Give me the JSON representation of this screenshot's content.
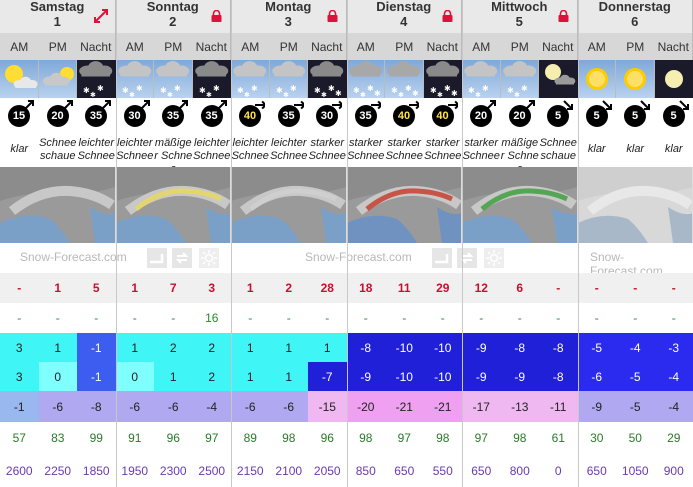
{
  "days": [
    {
      "name": "Samstag",
      "num": "1",
      "icon": "expand-arrows-icon"
    },
    {
      "name": "Sonntag",
      "num": "2",
      "icon": "lock-icon"
    },
    {
      "name": "Montag",
      "num": "3",
      "icon": "lock-icon"
    },
    {
      "name": "Dienstag",
      "num": "4",
      "icon": "lock-icon"
    },
    {
      "name": "Mittwoch",
      "num": "5",
      "icon": "lock-icon"
    },
    {
      "name": "Donnerstag",
      "num": "6",
      "icon": ""
    }
  ],
  "periods": [
    "AM",
    "PM",
    "Nacht"
  ],
  "weather_icons": [
    "sun-cloud",
    "cloud-sun",
    "cloud-snow-night",
    "cloud-snow",
    "cloud-snow",
    "cloud-snow-night",
    "cloud-snow",
    "cloud-snow",
    "cloud-heavy-snow-night",
    "cloud-heavy-snow",
    "cloud-heavy-snow",
    "cloud-heavy-snow-night",
    "cloud-snow",
    "cloud-snow",
    "moon-cloud-night",
    "sun",
    "sun",
    "moon-night"
  ],
  "wind": [
    "15",
    "20",
    "35",
    "30",
    "35",
    "35",
    "40",
    "35",
    "30",
    "35",
    "40",
    "40",
    "20",
    "20",
    "5",
    "5",
    "5",
    "5"
  ],
  "wind_yellow": [
    false,
    false,
    false,
    false,
    false,
    false,
    true,
    false,
    false,
    false,
    true,
    true,
    false,
    false,
    false,
    false,
    false,
    false
  ],
  "summary": [
    "klar",
    "Schnee schaue",
    "leichter Schnee",
    "leichter Schnee",
    "mäßiger Schnee",
    "leichter Schnee",
    "leichter Schnee",
    "leichter Schnee",
    "starker Schnee",
    "starker Schnee",
    "starker Schnee",
    "starker Schnee",
    "starker Schnee",
    "mäßiger Schnee",
    "Schnee schaue",
    "klar",
    "klar",
    "klar"
  ],
  "brand": {
    "text": "Snow-Forecast.com"
  },
  "snow": [
    "-",
    "1",
    "5",
    "1",
    "7",
    "3",
    "1",
    "2",
    "28",
    "18",
    "11",
    "29",
    "12",
    "6",
    "-",
    "-",
    "-",
    "-"
  ],
  "rain": [
    "-",
    "-",
    "-",
    "-",
    "-",
    "16",
    "-",
    "-",
    "-",
    "-",
    "-",
    "-",
    "-",
    "-",
    "-",
    "-",
    "-",
    "-"
  ],
  "max_temp": [
    "3",
    "1",
    "-1",
    "1",
    "2",
    "2",
    "1",
    "1",
    "1",
    "-8",
    "-10",
    "-10",
    "-9",
    "-8",
    "-8",
    "-5",
    "-4",
    "-3"
  ],
  "min_temp": [
    "3",
    "0",
    "-1",
    "0",
    "1",
    "2",
    "1",
    "1",
    "-7",
    "-9",
    "-10",
    "-10",
    "-9",
    "-9",
    "-8",
    "-6",
    "-5",
    "-4"
  ],
  "chill": [
    "-1",
    "-6",
    "-8",
    "-6",
    "-6",
    "-4",
    "-6",
    "-6",
    "-15",
    "-20",
    "-21",
    "-21",
    "-17",
    "-13",
    "-11",
    "-9",
    "-5",
    "-4"
  ],
  "humidity": [
    "57",
    "83",
    "99",
    "91",
    "96",
    "97",
    "89",
    "98",
    "96",
    "98",
    "97",
    "98",
    "97",
    "98",
    "61",
    "30",
    "50",
    "29"
  ],
  "freezing": [
    "2600",
    "2250",
    "1850",
    "1950",
    "2300",
    "2500",
    "2150",
    "2100",
    "2050",
    "850",
    "650",
    "550",
    "650",
    "800",
    "0",
    "650",
    "1050",
    "900"
  ],
  "colors": {
    "temp_cyan": "#3ff5f5",
    "temp_light_cyan": "#80ffff",
    "temp_blue": "#3d5cf0",
    "temp_royal": "#2b2bf0",
    "temp_indigo": "#2020d8",
    "temp_pale_blue": "#9ab8f0",
    "chill_lavender": "#b0a8f0",
    "chill_pink": "#f0a0f0",
    "chill_lightpink": "#f0b8f0"
  }
}
